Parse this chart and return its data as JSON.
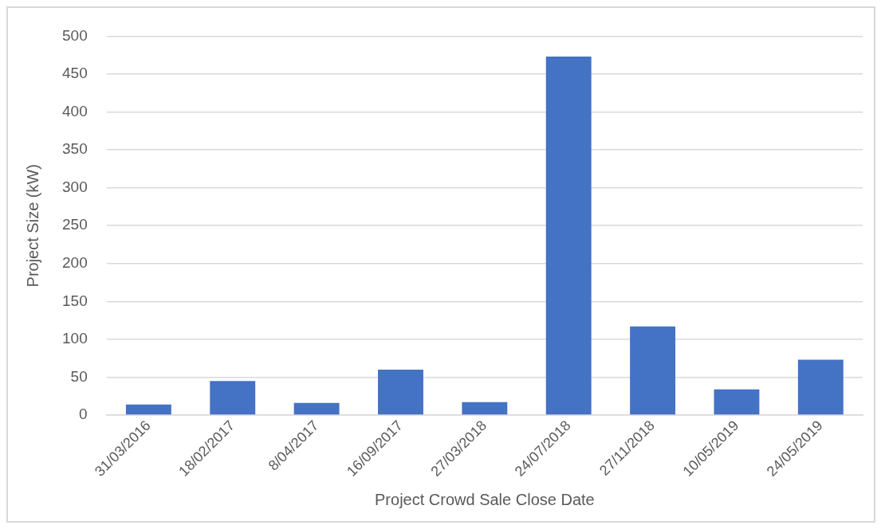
{
  "chart_data": {
    "type": "bar",
    "xlabel": "Project Crowd Sale Close Date",
    "ylabel": "Project Size (kW)",
    "categories": [
      "31/03/2016",
      "18/02/2017",
      "8/04/2017",
      "16/09/2017",
      "27/03/2018",
      "24/07/2018",
      "27/11/2018",
      "10/05/2019",
      "24/05/2019"
    ],
    "values": [
      14,
      45,
      16,
      60,
      17,
      473,
      117,
      34,
      73
    ],
    "color": "#4472c4",
    "ylim": [
      0,
      500
    ],
    "yticks": [
      0,
      50,
      100,
      150,
      200,
      250,
      300,
      350,
      400,
      450,
      500
    ],
    "grid": "y"
  }
}
